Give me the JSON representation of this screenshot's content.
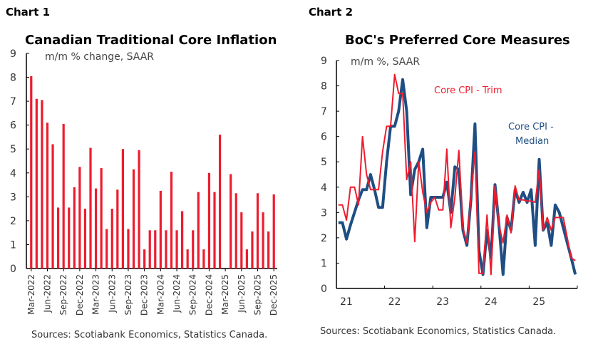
{
  "chart_data": [
    {
      "type": "bar",
      "label": "Chart 1",
      "title": "Canadian Traditional Core Inflation",
      "subtitle": "m/m % change, SAAR",
      "source": "Sources: Scotiabank Economics, Statistics Canada.",
      "ylim": [
        0,
        9
      ],
      "yticks": [
        0,
        1,
        2,
        3,
        4,
        5,
        6,
        7,
        8,
        9
      ],
      "color": "#ee1c2e",
      "tick_labels": [
        "Mar-2022",
        "Jun-2022",
        "Sep-2022",
        "Dec-2022",
        "Mar-2023",
        "Jun-2023",
        "Sep-2023",
        "Dec-2023",
        "Mar-2024",
        "Jun-2024",
        "Sep-2024",
        "Dec-2024",
        "Mar-2025",
        "Jun-2025",
        "Sep-2025",
        "Dec-2025"
      ],
      "values": [
        8.05,
        7.1,
        7.05,
        6.1,
        5.2,
        2.55,
        6.05,
        2.55,
        3.4,
        4.25,
        2.5,
        5.05,
        3.35,
        4.2,
        1.65,
        2.5,
        3.3,
        5.0,
        1.65,
        4.15,
        4.95,
        0.8,
        1.6,
        1.6,
        3.25,
        1.6,
        4.05,
        1.6,
        2.4,
        0.8,
        1.6,
        3.2,
        0.8,
        4.0,
        3.2,
        5.6,
        0,
        3.95,
        3.15,
        2.35,
        0.8,
        1.55,
        3.15,
        2.35,
        1.55,
        3.1
      ]
    },
    {
      "type": "line",
      "label": "Chart 2",
      "title": "BoC's Preferred Core Measures",
      "subtitle": "m/m %, SAAR",
      "source": "Sources: Scotiabank Economics, Statistics Canada.",
      "ylim": [
        0,
        9
      ],
      "yticks": [
        0,
        1,
        2,
        3,
        4,
        5,
        6,
        7,
        8,
        9
      ],
      "xticks": [
        "21",
        "22",
        "23",
        "24",
        "25"
      ],
      "series": [
        {
          "name": "Core CPI - Trim",
          "color": "#ee1c2e",
          "values": [
            3.3,
            3.3,
            2.7,
            4.0,
            4.0,
            3.3,
            6.0,
            4.5,
            3.9,
            3.9,
            3.9,
            5.4,
            6.4,
            6.4,
            8.45,
            7.7,
            7.7,
            4.3,
            5.0,
            1.85,
            5.0,
            3.8,
            3.0,
            3.4,
            3.6,
            3.1,
            3.1,
            5.5,
            2.4,
            3.6,
            5.45,
            2.4,
            1.8,
            3.6,
            5.4,
            0.6,
            0.6,
            2.9,
            0.55,
            4.05,
            2.5,
            1.8,
            2.9,
            2.2,
            4.05,
            3.5,
            3.5,
            3.45,
            3.45,
            3.4,
            4.7,
            2.3,
            2.8,
            2.3,
            2.8,
            2.8,
            2.8,
            2.0,
            1.2,
            1.1
          ]
        },
        {
          "name": "Core CPI - Median",
          "color": "#1f4e83",
          "values": [
            2.6,
            2.6,
            1.95,
            2.5,
            3.0,
            3.5,
            3.9,
            3.9,
            4.5,
            3.9,
            3.2,
            3.2,
            5.0,
            6.4,
            6.4,
            7.0,
            8.25,
            7.0,
            3.7,
            4.7,
            5.0,
            5.5,
            2.4,
            3.6,
            3.6,
            3.6,
            3.6,
            4.2,
            3.0,
            4.8,
            4.7,
            2.3,
            1.7,
            3.5,
            6.5,
            1.5,
            0.55,
            2.3,
            1.2,
            4.1,
            2.5,
            0.55,
            2.8,
            2.3,
            3.9,
            3.4,
            3.8,
            3.4,
            3.9,
            1.7,
            5.1,
            2.3,
            2.6,
            1.7,
            3.3,
            3.0,
            2.4,
            1.8,
            1.2,
            0.55
          ]
        }
      ],
      "annotations": [
        "Core CPI - Trim",
        "Core CPI -",
        "Median"
      ]
    }
  ]
}
